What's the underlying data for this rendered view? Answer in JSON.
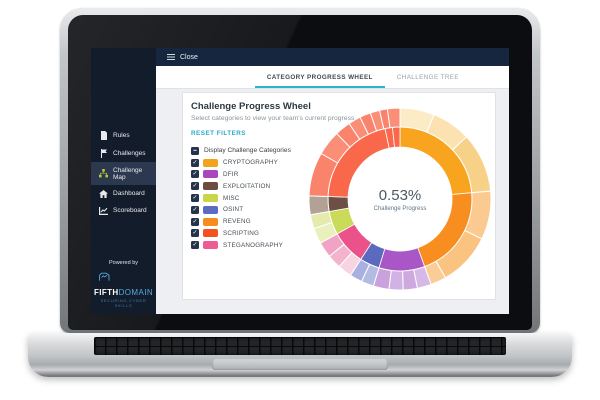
{
  "window": {
    "close_label": "Close"
  },
  "sidebar": {
    "items": [
      {
        "label": "Rules",
        "icon": "rules-icon",
        "active": false
      },
      {
        "label": "Challenges",
        "icon": "flag-icon",
        "active": false
      },
      {
        "label": "Challenge Map",
        "icon": "challenge-map-icon",
        "active": true
      },
      {
        "label": "Dashboard",
        "icon": "home-icon",
        "active": false
      },
      {
        "label": "Scoreboard",
        "icon": "scoreboard-icon",
        "active": false
      }
    ],
    "powered_by": "Powered by",
    "brand": {
      "name_bold": "FIFTH",
      "name_light": "DOMAIN",
      "tagline": "SECURING CYBER SKILLS"
    }
  },
  "tabs": [
    {
      "label": "CATEGORY PROGRESS WHEEL",
      "active": true
    },
    {
      "label": "CHALLENGE TREE",
      "active": false
    }
  ],
  "panel": {
    "title": "Challenge Progress Wheel",
    "subtitle": "Select categories to view your team's current progress."
  },
  "filters": {
    "reset_label": "RESET FILTERS",
    "master_label": "Display Challenge Categories",
    "master_checked": true,
    "categories": [
      {
        "label": "CRYPTOGRAPHY",
        "color": "#F2A41F",
        "checked": true
      },
      {
        "label": "DFIR",
        "color": "#AB47BC",
        "checked": true
      },
      {
        "label": "EXPLOITATION",
        "color": "#6D4C41",
        "checked": true
      },
      {
        "label": "MISC",
        "color": "#C9D648",
        "checked": true
      },
      {
        "label": "OSINT",
        "color": "#5C6BC0",
        "checked": true
      },
      {
        "label": "REVENG",
        "color": "#F78C1E",
        "checked": true
      },
      {
        "label": "SCRIPTING",
        "color": "#F4511E",
        "checked": true
      },
      {
        "label": "STEGANOGRAPHY",
        "color": "#EE5C94",
        "checked": true
      }
    ]
  },
  "chart_data": {
    "type": "sunburst",
    "title": "Challenge Progress Wheel",
    "center_value": "0.53%",
    "center_label": "Challenge Progress",
    "rings": {
      "inner": "challenge categories",
      "outer": "challenges within each category"
    },
    "angle_convention": "degrees clockwise from 12 o'clock; sizes estimated from pixels",
    "radii": {
      "hole": 52,
      "ring_split": 72,
      "outer": 91
    },
    "legend_position": "left checklist",
    "segments": [
      {
        "name": "CRYPTOGRAPHY",
        "color": "#F8A41E",
        "start_deg": 0,
        "end_deg": 85,
        "outer": [
          {
            "end_deg": 22,
            "color": "#FCEBC7"
          },
          {
            "end_deg": 47,
            "color": "#FBE2B0"
          },
          {
            "end_deg": 85,
            "color": "#F8D189"
          }
        ]
      },
      {
        "name": "REVENG",
        "color": "#F78E1F",
        "start_deg": 85,
        "end_deg": 160,
        "outer": [
          {
            "end_deg": 116,
            "color": "#FBCA90"
          },
          {
            "end_deg": 150,
            "color": "#FAC37F"
          },
          {
            "end_deg": 160,
            "color": "#FBCD96"
          }
        ]
      },
      {
        "name": "DFIR",
        "color": "#A957C7",
        "start_deg": 160,
        "end_deg": 197,
        "outer": [
          {
            "end_deg": 169,
            "color": "#D7B9E8"
          },
          {
            "end_deg": 178,
            "color": "#CDA9E0"
          },
          {
            "end_deg": 187,
            "color": "#D2B1E4"
          },
          {
            "end_deg": 197,
            "color": "#C9A2DD"
          }
        ]
      },
      {
        "name": "OSINT",
        "color": "#5B69BE",
        "start_deg": 197,
        "end_deg": 213,
        "outer": [
          {
            "end_deg": 205,
            "color": "#B3BBE3"
          },
          {
            "end_deg": 213,
            "color": "#A8B0DF"
          }
        ]
      },
      {
        "name": "STEGANOGRAPHY",
        "color": "#EB5289",
        "start_deg": 213,
        "end_deg": 241,
        "outer": [
          {
            "end_deg": 222,
            "color": "#F8D3E1"
          },
          {
            "end_deg": 231,
            "color": "#F4B3CD"
          },
          {
            "end_deg": 241,
            "color": "#F0A3C2"
          }
        ]
      },
      {
        "name": "MISC",
        "color": "#C9DB59",
        "start_deg": 241,
        "end_deg": 260,
        "outer": [
          {
            "end_deg": 251,
            "color": "#EAF0BC"
          },
          {
            "end_deg": 260,
            "color": "#E4EBAC"
          }
        ]
      },
      {
        "name": "EXPLOITATION",
        "color": "#6E4F45",
        "start_deg": 260,
        "end_deg": 272,
        "outer": [
          {
            "end_deg": 272,
            "color": "#B2A195"
          }
        ]
      },
      {
        "name": "SCRIPTING",
        "color": "#F9684B",
        "start_deg": 272,
        "end_deg": 360,
        "inner_dividers": [
          348,
          354
        ],
        "outer": [
          {
            "end_deg": 300,
            "color": "#F9836B"
          },
          {
            "end_deg": 316,
            "color": "#FA8E77"
          },
          {
            "end_deg": 326,
            "color": "#F9836B"
          },
          {
            "end_deg": 334,
            "color": "#FA8E77"
          },
          {
            "end_deg": 341,
            "color": "#F9836B"
          },
          {
            "end_deg": 347,
            "color": "#FA8E77"
          },
          {
            "end_deg": 352,
            "color": "#F9836B"
          },
          {
            "end_deg": 360,
            "color": "#FA8E77"
          }
        ]
      }
    ]
  }
}
